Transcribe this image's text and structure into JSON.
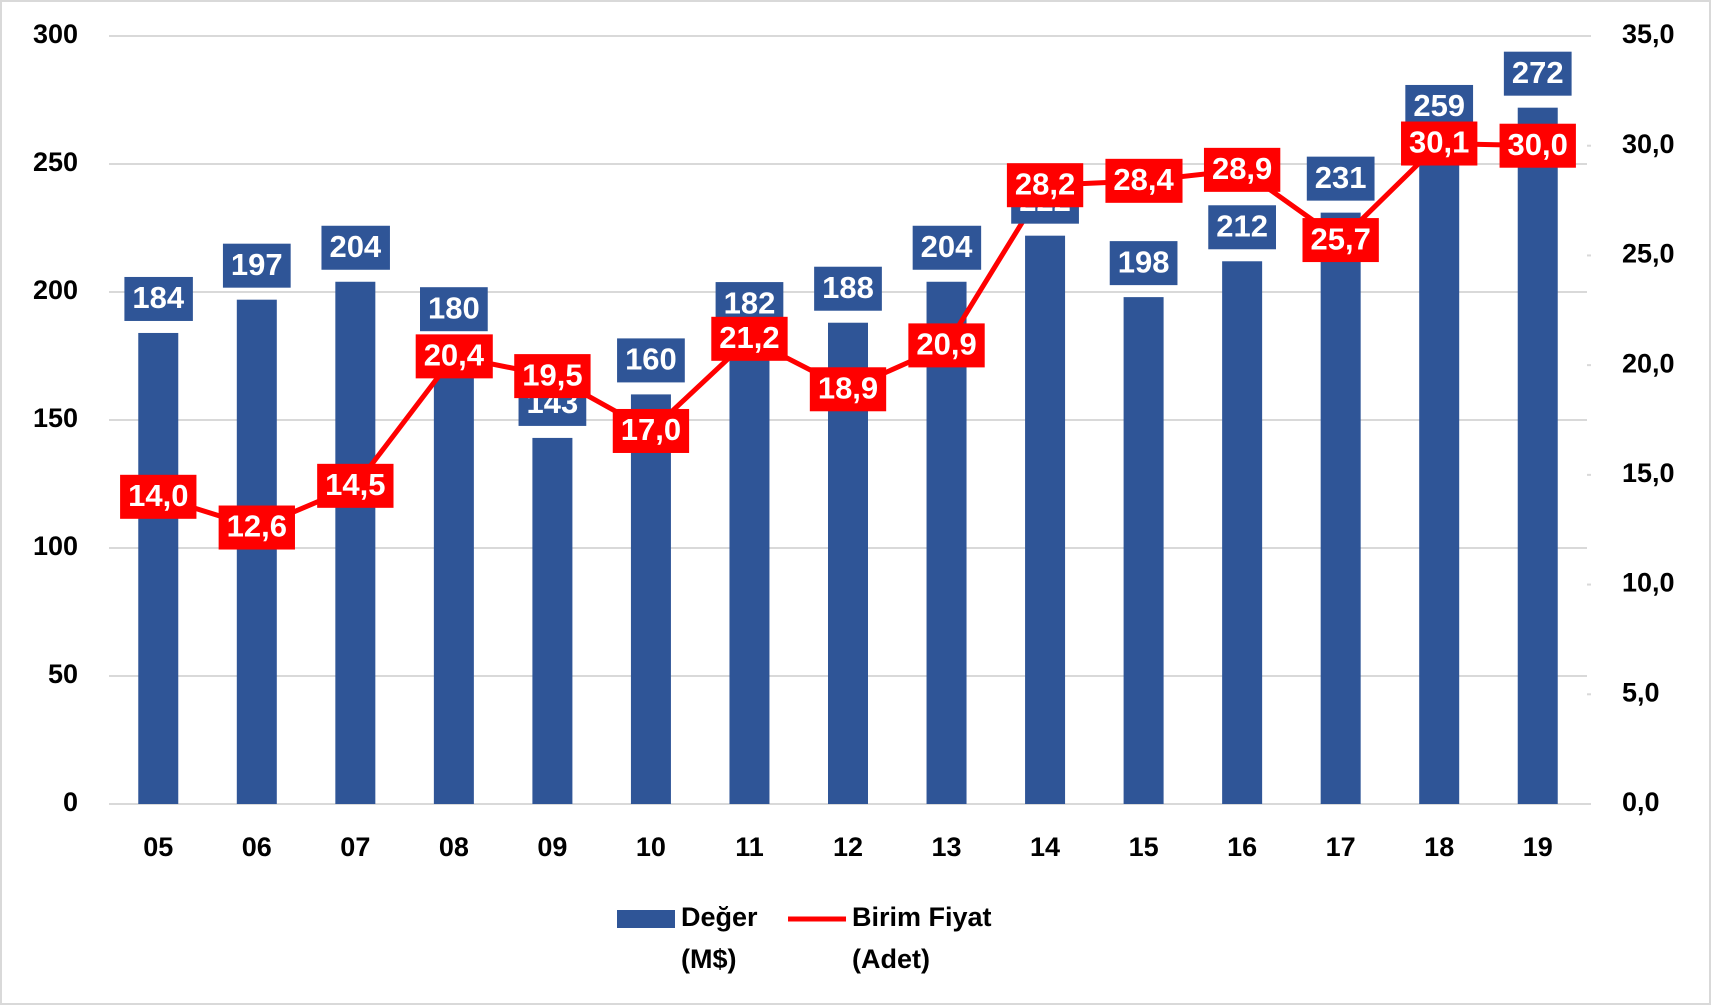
{
  "chart_data": {
    "type": "bar-line",
    "categories": [
      "05",
      "06",
      "07",
      "08",
      "09",
      "10",
      "11",
      "12",
      "13",
      "14",
      "15",
      "16",
      "17",
      "18",
      "19"
    ],
    "series": [
      {
        "name": "Değer (M$)",
        "type": "bar",
        "color": "#2f5597",
        "values": [
          184,
          197,
          204,
          180,
          143,
          160,
          182,
          188,
          204,
          222,
          198,
          212,
          231,
          259,
          272
        ]
      },
      {
        "name": "Birim Fiyat (Adet)",
        "type": "line",
        "color": "#ff0000",
        "axis": "y2",
        "values": [
          14.0,
          12.6,
          14.5,
          20.4,
          19.5,
          17.0,
          21.2,
          18.9,
          20.9,
          28.2,
          28.4,
          28.9,
          25.7,
          30.1,
          30.0
        ],
        "value_labels": [
          "14,0",
          "12,6",
          "14,5",
          "20,4",
          "19,5",
          "17,0",
          "21,2",
          "18,9",
          "20,9",
          "28,2",
          "28,4",
          "28,9",
          "25,7",
          "30,1",
          "30,0"
        ]
      }
    ],
    "ylim": [
      0,
      300
    ],
    "yticks": [
      0,
      50,
      100,
      150,
      200,
      250,
      300
    ],
    "y2lim": [
      0,
      35
    ],
    "y2ticks": [
      {
        "value": 0,
        "label": "0,0"
      },
      {
        "value": 5,
        "label": "5,0"
      },
      {
        "value": 10,
        "label": "10,0"
      },
      {
        "value": 15,
        "label": "15,0"
      },
      {
        "value": 20,
        "label": "20,0"
      },
      {
        "value": 25,
        "label": "25,0"
      },
      {
        "value": 30,
        "label": "30,0"
      },
      {
        "value": 35,
        "label": "35,0"
      }
    ],
    "grid": true,
    "legend": "bottom"
  }
}
